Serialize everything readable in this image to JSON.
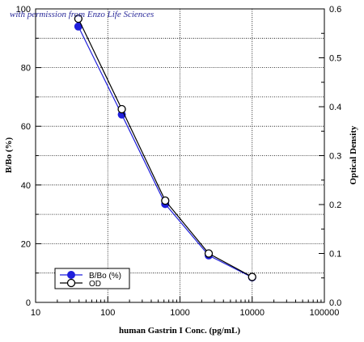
{
  "credit": "with permission from Enzo Life Sciences",
  "chart_data": {
    "type": "line",
    "xscale": "log",
    "xlabel": "human Gastrin I Conc. (pg/mL)",
    "ylabel": "B/Bo (%)",
    "y2label": "Optical Density",
    "xlim": [
      10,
      100000
    ],
    "ylim": [
      0,
      100
    ],
    "y2lim": [
      0,
      0.6
    ],
    "x_ticks": [
      "10",
      "100",
      "1000",
      "10000",
      "100000"
    ],
    "y_ticks": [
      "0",
      "20",
      "40",
      "60",
      "80",
      "100"
    ],
    "y2_ticks": [
      "0.0",
      "0.1",
      "0.2",
      "0.3",
      "0.4",
      "0.5",
      "0.6"
    ],
    "grid": true,
    "legend_position": "bottom-left",
    "series": [
      {
        "name": "B/Bo (%)",
        "axis": "left",
        "color": "#1f1fdc",
        "marker": "filled-circle",
        "x": [
          39.1,
          156.3,
          625,
          2500,
          10000
        ],
        "y": [
          94,
          64,
          33.5,
          16,
          8.5
        ]
      },
      {
        "name": "OD",
        "axis": "right",
        "color": "#000000",
        "marker": "open-circle",
        "x": [
          39.1,
          156.3,
          625,
          2500,
          10000
        ],
        "y": [
          0.58,
          0.395,
          0.208,
          0.1,
          0.052
        ]
      }
    ]
  }
}
